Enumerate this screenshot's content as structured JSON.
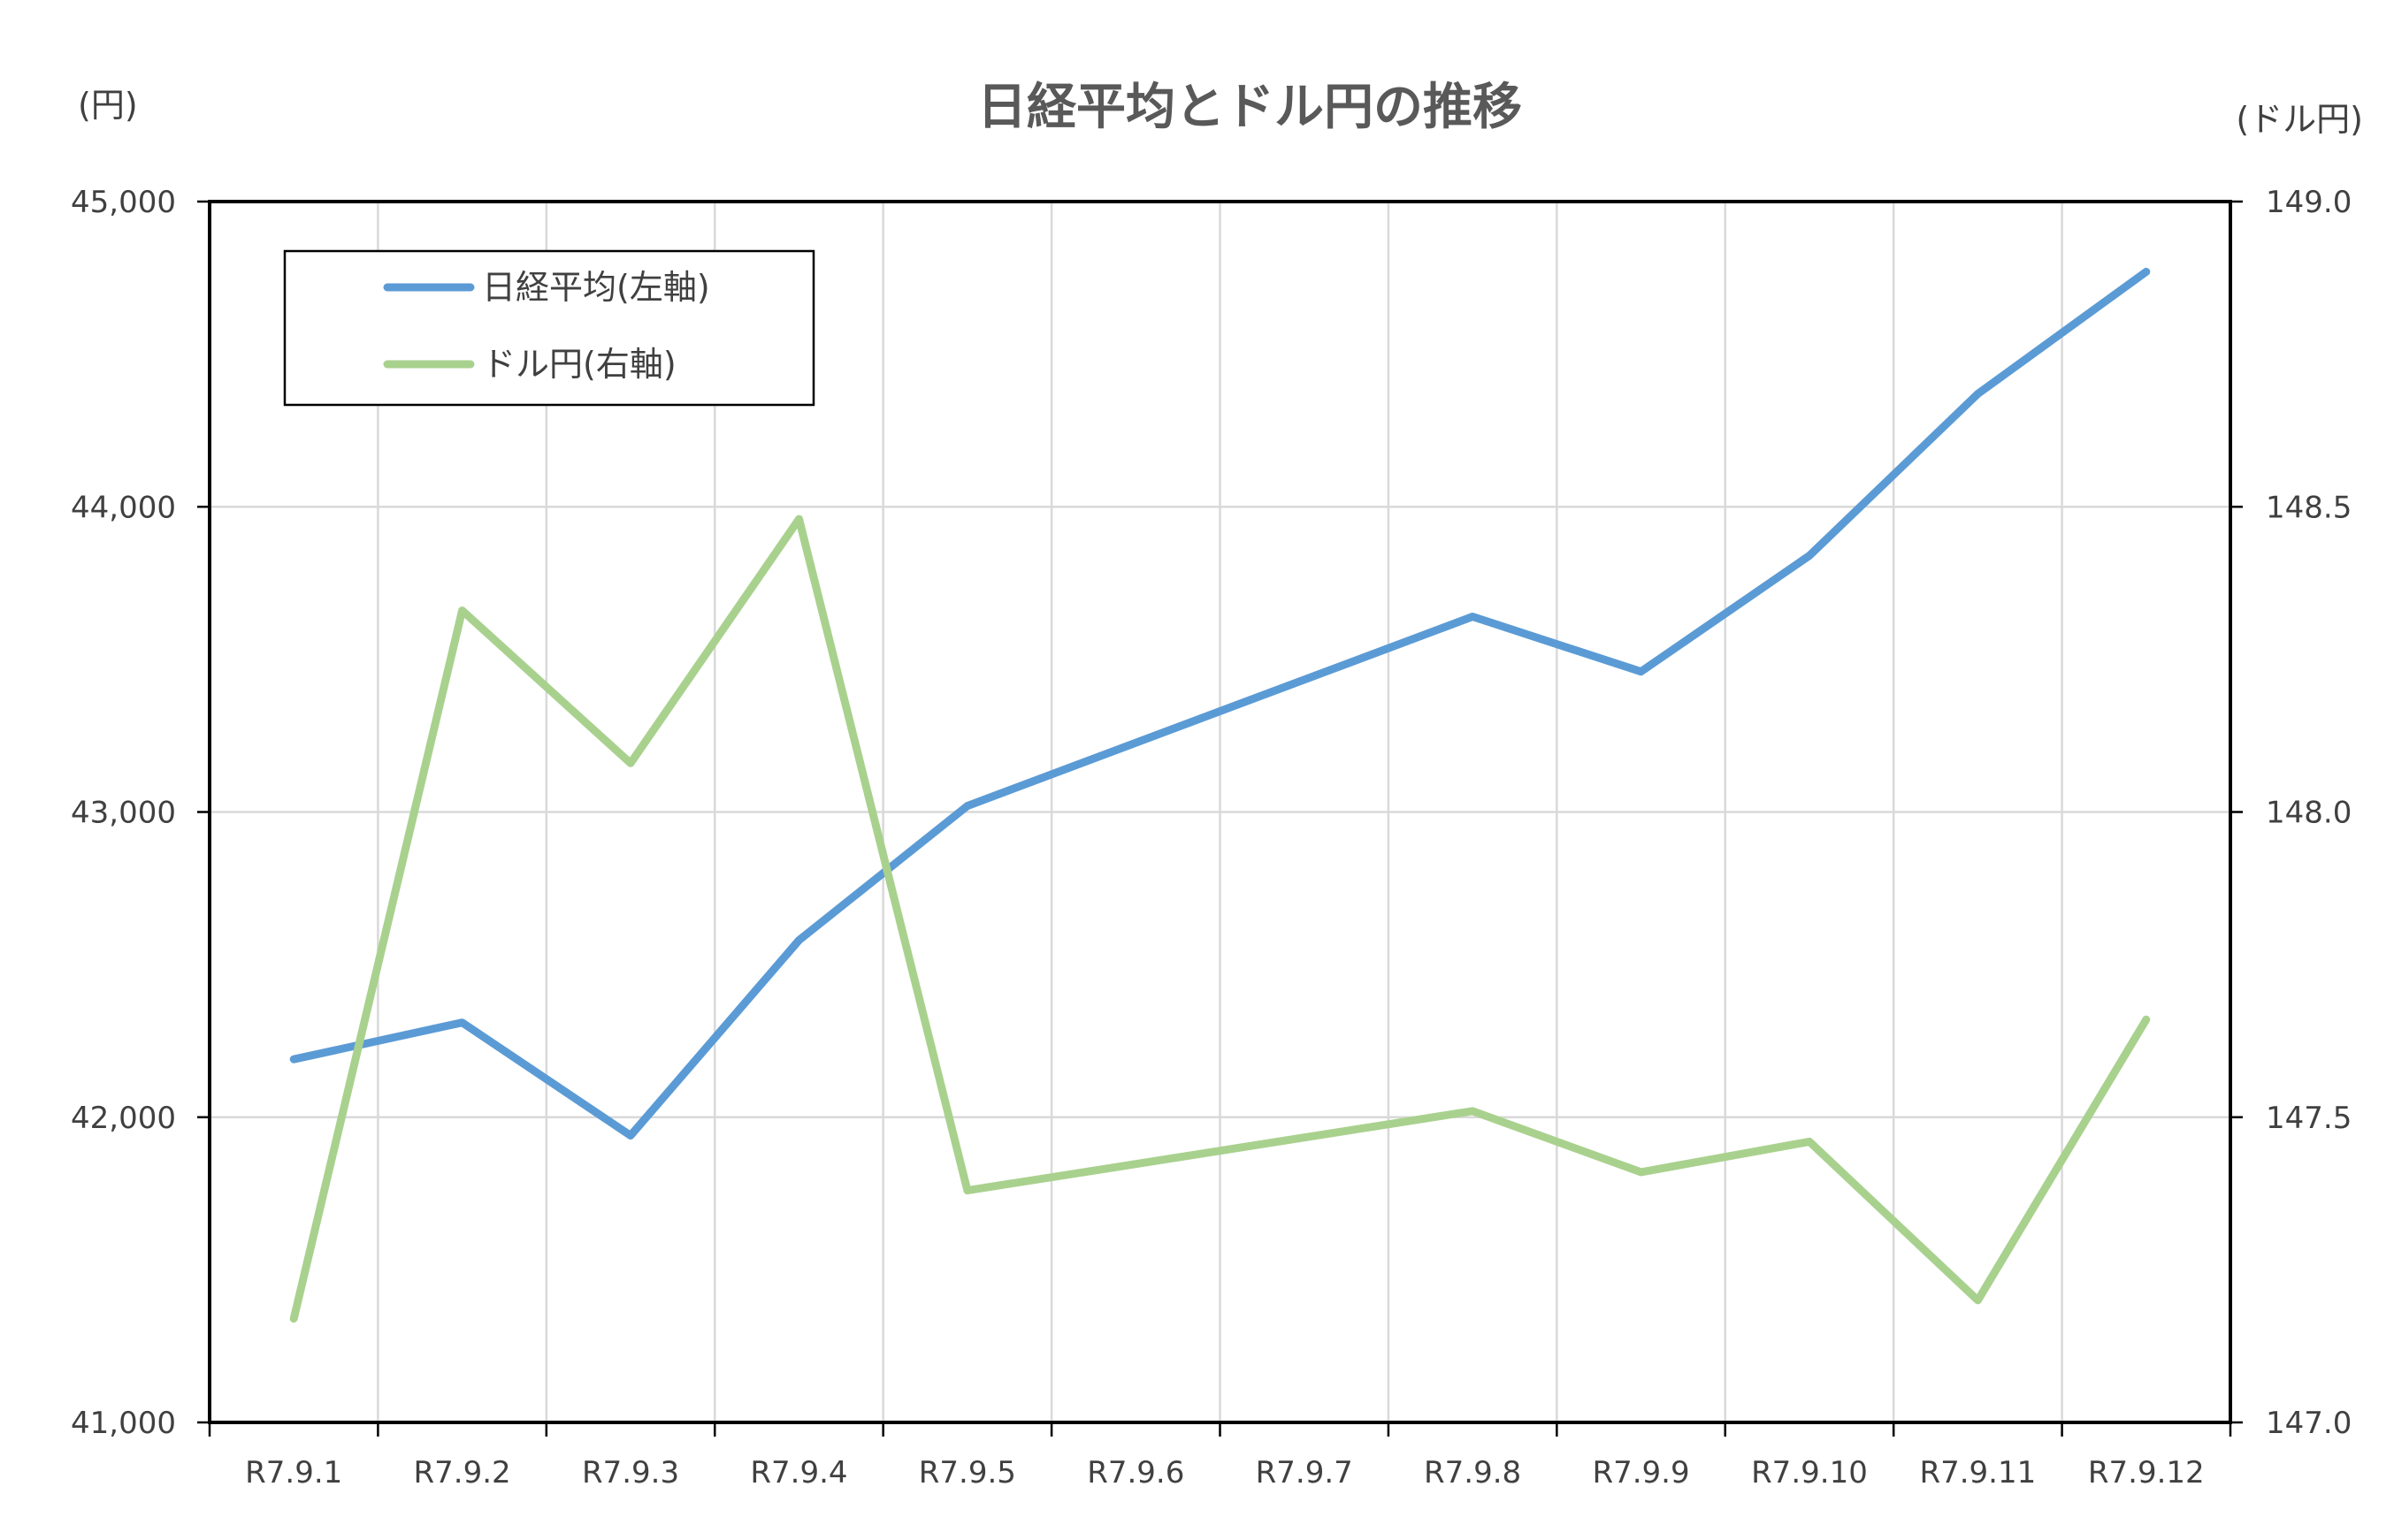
{
  "chart_data": {
    "type": "line",
    "title": "日経平均とドル円の推移",
    "categories": [
      "R7.9.1",
      "R7.9.2",
      "R7.9.3",
      "R7.9.4",
      "R7.9.5",
      "R7.9.6",
      "R7.9.7",
      "R7.9.8",
      "R7.9.9",
      "R7.9.10",
      "R7.9.11",
      "R7.9.12"
    ],
    "y_left": {
      "unit_label": "(円)",
      "range": [
        41000,
        45000
      ],
      "ticks": [
        41000,
        42000,
        43000,
        44000,
        45000
      ],
      "tick_labels": [
        "41,000",
        "42,000",
        "43,000",
        "44,000",
        "45,000"
      ]
    },
    "y_right": {
      "unit_label": "(ドル円)",
      "range": [
        147.0,
        149.0
      ],
      "ticks": [
        147.0,
        147.5,
        148.0,
        148.5,
        149.0
      ],
      "tick_labels": [
        "147.0",
        "147.5",
        "148.0",
        "148.5",
        "149.0"
      ]
    },
    "series": [
      {
        "name": "日経平均(左軸)",
        "axis": "left",
        "color": "#5B9BD5",
        "points": [
          {
            "x": "R7.9.1",
            "y": 42190
          },
          {
            "x": "R7.9.2",
            "y": 42310
          },
          {
            "x": "R7.9.3",
            "y": 41940
          },
          {
            "x": "R7.9.4",
            "y": 42580
          },
          {
            "x": "R7.9.5",
            "y": 43020
          },
          {
            "x": "R7.9.8",
            "y": 43640
          },
          {
            "x": "R7.9.9",
            "y": 43460
          },
          {
            "x": "R7.9.10",
            "y": 43840
          },
          {
            "x": "R7.9.11",
            "y": 44370
          },
          {
            "x": "R7.9.12",
            "y": 44770
          }
        ]
      },
      {
        "name": "ドル円(右軸)",
        "axis": "right",
        "color": "#A9D18E",
        "points": [
          {
            "x": "R7.9.1",
            "y": 147.17
          },
          {
            "x": "R7.9.2",
            "y": 148.33
          },
          {
            "x": "R7.9.3",
            "y": 148.08
          },
          {
            "x": "R7.9.4",
            "y": 148.48
          },
          {
            "x": "R7.9.5",
            "y": 147.38
          },
          {
            "x": "R7.9.8",
            "y": 147.51
          },
          {
            "x": "R7.9.9",
            "y": 147.41
          },
          {
            "x": "R7.9.10",
            "y": 147.46
          },
          {
            "x": "R7.9.11",
            "y": 147.2
          },
          {
            "x": "R7.9.12",
            "y": 147.66
          }
        ]
      }
    ],
    "grid": true,
    "legend_position": "top-left"
  }
}
